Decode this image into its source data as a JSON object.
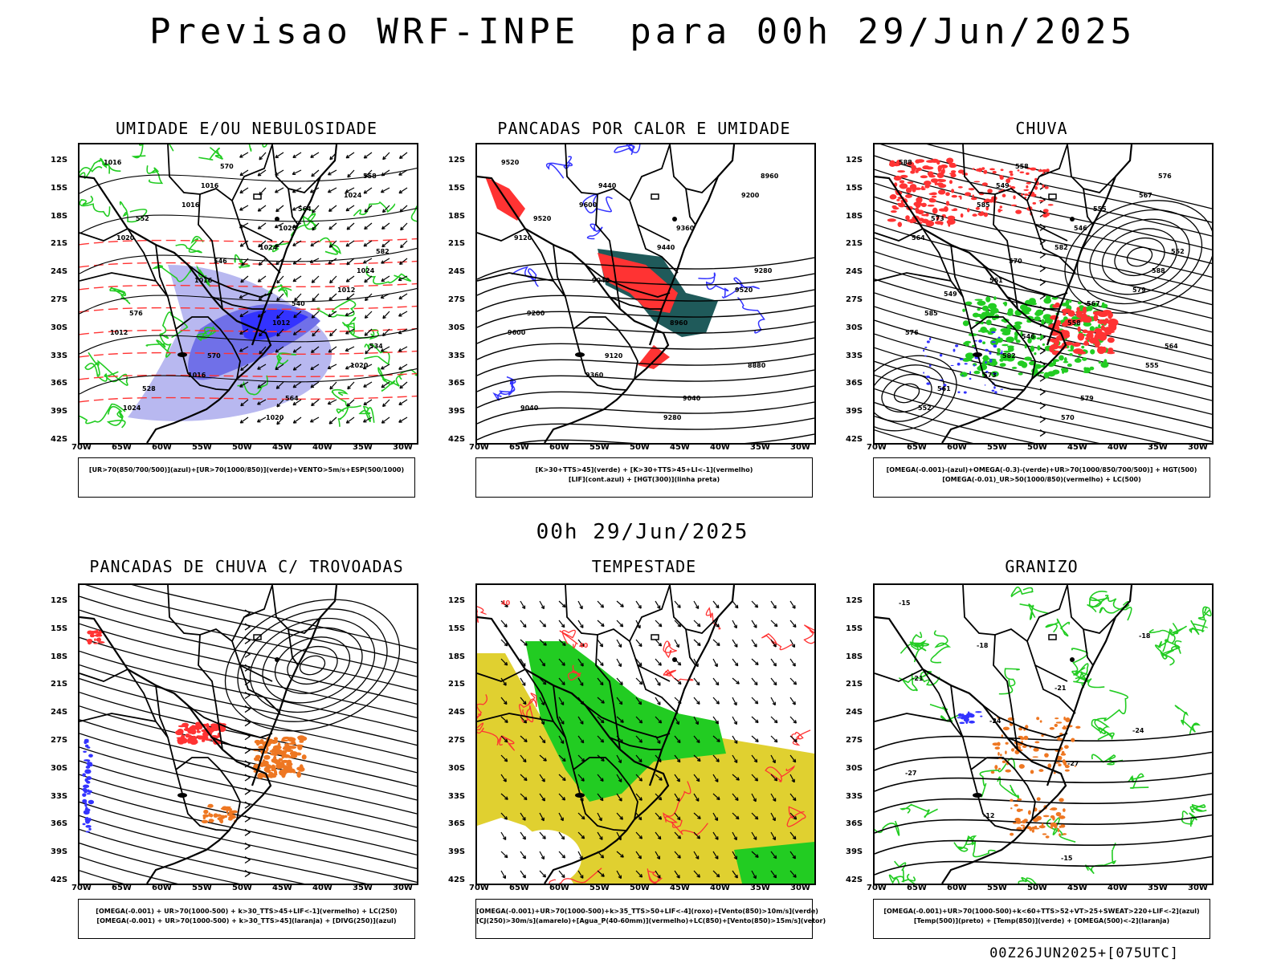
{
  "title": "Previsao WRF-INPE  para 00h 29/Jun/2025",
  "middle_title": "00h 29/Jun/2025",
  "footer": "00Z26JUN2025+[075UTC]",
  "lat_ticks": [
    "12S",
    "15S",
    "18S",
    "21S",
    "24S",
    "27S",
    "30S",
    "33S",
    "36S",
    "39S",
    "42S"
  ],
  "lon_ticks": [
    "70W",
    "65W",
    "60W",
    "55W",
    "50W",
    "45W",
    "40W",
    "35W",
    "30W"
  ],
  "panels": [
    {
      "title": "UMIDADE E/OU NEBULOSIDADE",
      "legend": [
        "[UR>70(850/700/500)](azul)+[UR>70(1000/850)](verde)+VENTO>5m/s+ESP(500/1000)"
      ],
      "contour_labels": [
        "1016",
        "1016",
        "1024",
        "1012",
        "1012",
        "1016",
        "1020",
        "1024",
        "1020",
        "1016",
        "1012",
        "1020",
        "1024",
        "1016",
        "1020",
        "1024",
        "576",
        "570",
        "564",
        "558",
        "552",
        "546",
        "540",
        "534",
        "528",
        "570",
        "564",
        "582"
      ]
    },
    {
      "title": "PANCADAS POR CALOR E UMIDADE",
      "legend": [
        "[K>30+TTS>45](verde) + [K>30+TTS>45+LI<-1](vermelho)",
        "[LIF](cont.azul) + [HGT(300)](linha preta)"
      ],
      "contour_labels": [
        "9520",
        "9600",
        "9440",
        "9520",
        "9600",
        "9360",
        "9280",
        "9200",
        "9120",
        "9040",
        "8960",
        "8880",
        "9040",
        "9440",
        "9360",
        "9280",
        "9200",
        "9120",
        "9040",
        "8960",
        "9520"
      ]
    },
    {
      "title": "CHUVA",
      "legend": [
        "[OMEGA(-0.001)-(azul)+OMEGA(-0.3)-(verde)+UR>70(1000/850/700/500)] + HGT(500)",
        "[OMEGA(-0.01)_UR>50(1000/850)(vermelho) + LC(500)"
      ],
      "contour_labels": [
        "588",
        "585",
        "582",
        "579",
        "576",
        "573",
        "570",
        "567",
        "564",
        "561",
        "558",
        "555",
        "552",
        "549",
        "546",
        "588",
        "585",
        "582",
        "579",
        "576",
        "573",
        "570",
        "567",
        "564",
        "561",
        "558",
        "555",
        "552",
        "549",
        "546"
      ]
    },
    {
      "title": "PANCADAS DE CHUVA C/ TROVOADAS",
      "legend": [
        "[OMEGA(-0.001) + UR>70(1000-500) + k>30_TTS>45+LIF<-1](vermelho) + LC(250)",
        "[OMEGA(-0.001) + UR>70(1000-500) + k>30_TTS>45](laranja) + [DIVG(250)](azul)"
      ],
      "contour_labels": []
    },
    {
      "title": "TEMPESTADE",
      "legend": [
        "[OMEGA(-0.001)+UR>70(1000-500)+k>35_TTS>50+LIF<-4](roxo)+[Vento(850)>10m/s](verde)",
        "[CJ(250)>30m/s](amarelo)+[Agua_P(40-60mm)](vermelho)+LC(850)+[Vento(850)>15m/s](vetor)"
      ],
      "contour_labels": [
        "40",
        "40"
      ]
    },
    {
      "title": "GRANIZO",
      "legend": [
        "[OMEGA(-0.001)+UR>70(1000-500)+k<60+TTS>52+VT>25+SWEAT>220+LIF<-2](azul)",
        "[Temp(500)](preto) + [Temp(850)](verde) + [OMEGA(500)<-2](laranja)"
      ],
      "contour_labels": [
        "-15",
        "-18",
        "-21",
        "-24",
        "-27",
        "-12",
        "-15",
        "-18",
        "-21",
        "-24",
        "-27"
      ]
    }
  ],
  "colors": {
    "blue": "#3333ff",
    "green": "#22cc22",
    "red": "#ff3333",
    "orange": "#ee7722",
    "yellow": "#e0d030",
    "teal": "#1f5a5a",
    "lavender": "#b8b8f0",
    "black": "#000000"
  }
}
